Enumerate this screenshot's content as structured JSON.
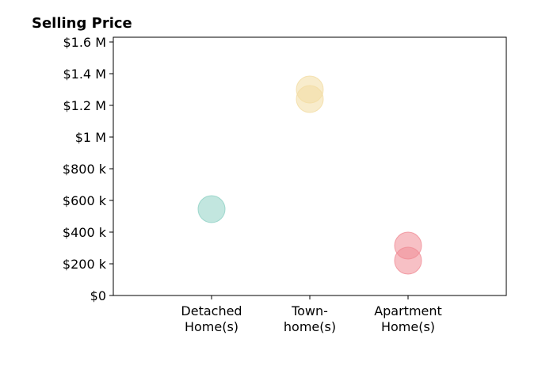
{
  "chart_data": {
    "type": "scatter",
    "title": "Selling Price",
    "xlabel": "",
    "ylabel": "",
    "categories": [
      [
        "Detached",
        "Home(s)"
      ],
      [
        "Town-",
        "home(s)"
      ],
      [
        "Apartment",
        "Home(s)"
      ]
    ],
    "y_tick_values": [
      0,
      200000,
      400000,
      600000,
      800000,
      1000000,
      1200000,
      1400000,
      1600000
    ],
    "y_tick_labels": [
      "$0",
      "$200 k",
      "$400 k",
      "$600 k",
      "$800 k",
      "$1 M",
      "$1.2 M",
      "$1.4 M",
      "$1.6 M"
    ],
    "ylim": [
      0,
      1630000
    ],
    "xlim": [
      -1,
      3
    ],
    "grid": false,
    "colors": [
      "#8fd1c4",
      "#f2dca3",
      "#f08c96"
    ],
    "points": [
      {
        "category": 0,
        "y": 545000
      },
      {
        "category": 1,
        "y": 1300000
      },
      {
        "category": 1,
        "y": 1240000
      },
      {
        "category": 2,
        "y": 315000
      },
      {
        "category": 2,
        "y": 220000
      }
    ]
  }
}
